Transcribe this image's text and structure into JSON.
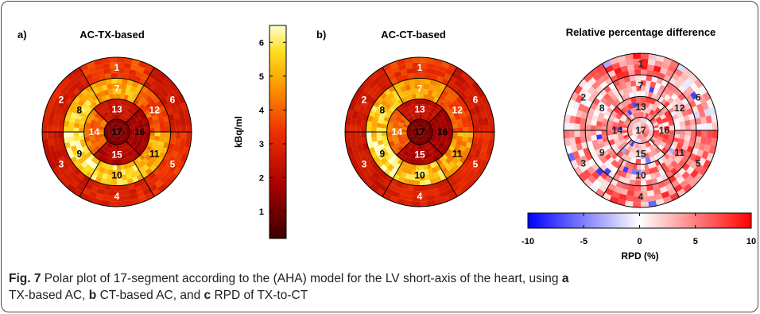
{
  "panels": [
    {
      "label": "a)",
      "title": "AC-TX-based"
    },
    {
      "label": "b)",
      "title": "AC-CT-based"
    },
    {
      "label": "c)",
      "title": "Relative percentage difference"
    }
  ],
  "colorbar_uptake": {
    "title": "kBq/ml",
    "ticks": [
      "1",
      "2",
      "3",
      "4",
      "5",
      "6"
    ],
    "range": [
      0.2,
      6.5
    ]
  },
  "colorbar_rpd": {
    "title": "RPD (%)",
    "ticks": [
      "-10",
      "-5",
      "0",
      "5",
      "10"
    ],
    "range": [
      -10,
      10
    ]
  },
  "chart_data": [
    {
      "type": "heatmap",
      "title": "AC-TX-based",
      "units": "kBq/ml",
      "segments": [
        "1",
        "2",
        "3",
        "4",
        "5",
        "6",
        "7",
        "8",
        "9",
        "10",
        "11",
        "12",
        "13",
        "14",
        "15",
        "16",
        "17"
      ],
      "values": [
        3.5,
        2.8,
        2.6,
        3.0,
        3.2,
        2.7,
        4.9,
        5.4,
        6.0,
        5.6,
        5.0,
        3.8,
        2.4,
        4.2,
        2.0,
        1.8,
        1.2
      ]
    },
    {
      "type": "heatmap",
      "title": "AC-CT-based",
      "units": "kBq/ml",
      "segments": [
        "1",
        "2",
        "3",
        "4",
        "5",
        "6",
        "7",
        "8",
        "9",
        "10",
        "11",
        "12",
        "13",
        "14",
        "15",
        "16",
        "17"
      ],
      "values": [
        3.4,
        2.7,
        2.5,
        2.9,
        3.1,
        2.6,
        4.7,
        5.3,
        5.9,
        5.5,
        4.8,
        3.7,
        2.3,
        4.1,
        1.9,
        1.7,
        1.1
      ]
    },
    {
      "type": "heatmap",
      "title": "Relative percentage difference",
      "units": "%",
      "segments": [
        "1",
        "2",
        "3",
        "4",
        "5",
        "6",
        "7",
        "8",
        "9",
        "10",
        "11",
        "12",
        "13",
        "14",
        "15",
        "16",
        "17"
      ],
      "values": [
        5,
        3,
        3,
        4,
        4,
        2,
        3,
        3,
        3,
        3,
        4,
        3,
        4,
        4,
        3,
        4,
        2
      ]
    }
  ],
  "caption": {
    "fig_num": "Fig. 7",
    "part1": " Polar plot of 17-segment according to the (AHA) model for the LV short-axis of the heart, using ",
    "a": "a",
    "part2": "TX-based AC, ",
    "b": "b",
    "part3": " CT-based AC, and ",
    "c": "c",
    "part4": " RPD of TX-to-CT"
  }
}
